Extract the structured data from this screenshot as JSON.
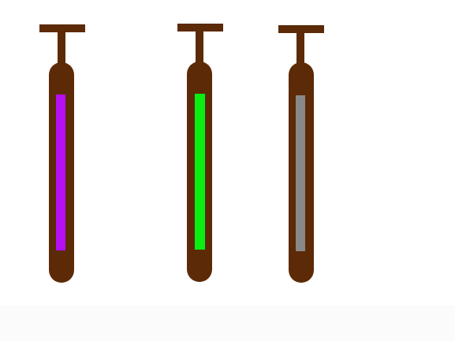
{
  "scene": {
    "background_color": "#ffffff",
    "frame_color": "#5c2a06",
    "tubes": [
      {
        "id": "tube-1",
        "fill_color": "#b50ff2",
        "fill_name": "purple"
      },
      {
        "id": "tube-2",
        "fill_color": "#0aee11",
        "fill_name": "green"
      },
      {
        "id": "tube-3",
        "fill_color": "#888888",
        "fill_name": "gray"
      }
    ]
  }
}
